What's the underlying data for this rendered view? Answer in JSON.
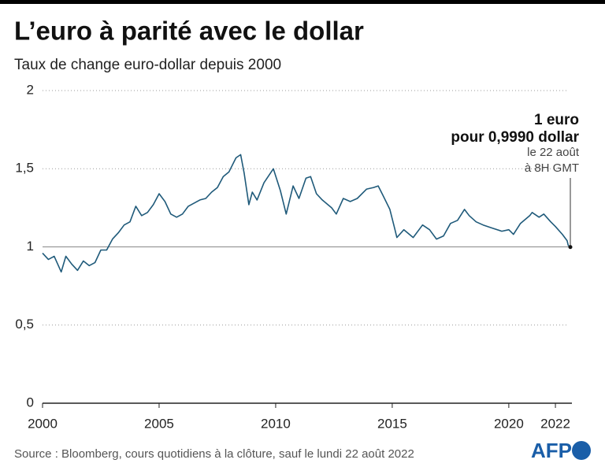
{
  "chart_data": {
    "type": "line",
    "title": "L’euro à parité avec le dollar",
    "subtitle": "Taux de change euro-dollar depuis 2000",
    "source": "Source : Bloomberg, cours quotidiens à la clôture, sauf le lundi 22 août 2022",
    "logo": "AFP",
    "annotations": [
      "1 euro",
      "pour 0,9990 dollar",
      "le 22 août",
      "à 8H GMT"
    ],
    "x": [
      2000.0,
      2000.25,
      2000.5,
      2000.8,
      2001.0,
      2001.25,
      2001.5,
      2001.75,
      2002.0,
      2002.25,
      2002.5,
      2002.75,
      2003.0,
      2003.25,
      2003.5,
      2003.75,
      2004.0,
      2004.25,
      2004.5,
      2004.75,
      2005.0,
      2005.25,
      2005.5,
      2005.75,
      2006.0,
      2006.25,
      2006.5,
      2006.75,
      2007.0,
      2007.25,
      2007.5,
      2007.75,
      2008.0,
      2008.3,
      2008.5,
      2008.65,
      2008.85,
      2009.0,
      2009.2,
      2009.5,
      2009.9,
      2010.2,
      2010.45,
      2010.75,
      2011.0,
      2011.3,
      2011.5,
      2011.75,
      2012.0,
      2012.4,
      2012.6,
      2012.9,
      2013.2,
      2013.5,
      2013.9,
      2014.2,
      2014.4,
      2014.6,
      2014.9,
      2015.1,
      2015.2,
      2015.5,
      2015.9,
      2016.3,
      2016.6,
      2016.9,
      2017.2,
      2017.5,
      2017.8,
      2018.1,
      2018.3,
      2018.6,
      2018.9,
      2019.3,
      2019.7,
      2020.0,
      2020.2,
      2020.5,
      2020.9,
      2021.0,
      2021.3,
      2021.5,
      2021.8,
      2022.0,
      2022.3,
      2022.5,
      2022.55,
      2022.64
    ],
    "values": [
      0.96,
      0.92,
      0.94,
      0.84,
      0.94,
      0.89,
      0.85,
      0.91,
      0.88,
      0.9,
      0.98,
      0.98,
      1.05,
      1.09,
      1.14,
      1.16,
      1.26,
      1.2,
      1.22,
      1.27,
      1.34,
      1.29,
      1.21,
      1.19,
      1.21,
      1.26,
      1.28,
      1.3,
      1.31,
      1.35,
      1.38,
      1.45,
      1.48,
      1.57,
      1.59,
      1.47,
      1.27,
      1.35,
      1.3,
      1.41,
      1.5,
      1.36,
      1.21,
      1.39,
      1.31,
      1.44,
      1.45,
      1.34,
      1.3,
      1.25,
      1.21,
      1.31,
      1.29,
      1.31,
      1.37,
      1.38,
      1.39,
      1.33,
      1.24,
      1.12,
      1.06,
      1.11,
      1.06,
      1.14,
      1.11,
      1.05,
      1.07,
      1.15,
      1.17,
      1.24,
      1.2,
      1.16,
      1.14,
      1.12,
      1.1,
      1.11,
      1.08,
      1.15,
      1.2,
      1.22,
      1.19,
      1.21,
      1.16,
      1.13,
      1.08,
      1.04,
      1.01,
      0.999
    ],
    "color": "#1f5a7a",
    "xlim": [
      2000,
      2022.64
    ],
    "xticks": [
      2000,
      2005,
      2010,
      2015,
      2020,
      2022
    ],
    "ylim": [
      0,
      2
    ],
    "yticks": [
      0,
      {
        "value": 0.5,
        "label": "0,5"
      },
      1,
      {
        "value": 1.5,
        "label": "1,5"
      },
      2
    ],
    "grid": true
  }
}
